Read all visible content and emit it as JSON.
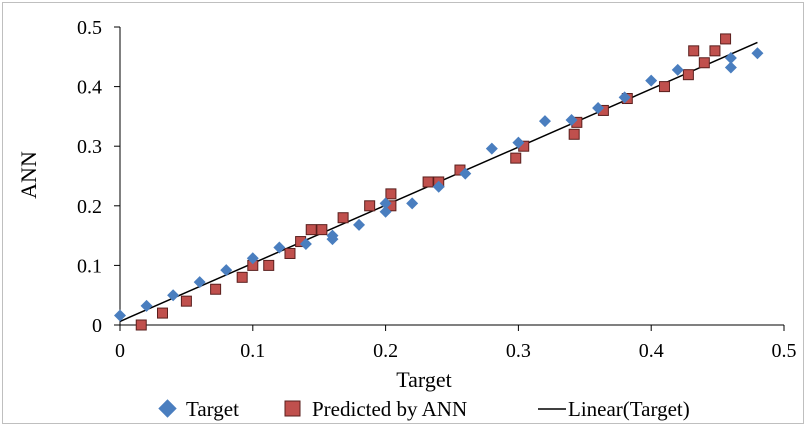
{
  "chart_data": {
    "type": "scatter",
    "title": "",
    "xlabel": "Target",
    "ylabel": "ANN",
    "xlim": [
      0,
      0.5
    ],
    "ylim": [
      0,
      0.5
    ],
    "x_ticks": [
      "0",
      "0.1",
      "0.2",
      "0.3",
      "0.4",
      "0.5"
    ],
    "y_ticks": [
      "0",
      "0.1",
      "0.2",
      "0.3",
      "0.4",
      "0.5"
    ],
    "grid": false,
    "legend_position": "bottom",
    "series": [
      {
        "name": "Target",
        "marker": "diamond",
        "color": "#4a7ebf",
        "points": [
          [
            0.0,
            0.016
          ],
          [
            0.02,
            0.032
          ],
          [
            0.04,
            0.05
          ],
          [
            0.06,
            0.072
          ],
          [
            0.08,
            0.092
          ],
          [
            0.1,
            0.112
          ],
          [
            0.12,
            0.13
          ],
          [
            0.14,
            0.136
          ],
          [
            0.16,
            0.144
          ],
          [
            0.16,
            0.15
          ],
          [
            0.18,
            0.168
          ],
          [
            0.2,
            0.19
          ],
          [
            0.2,
            0.204
          ],
          [
            0.22,
            0.204
          ],
          [
            0.24,
            0.232
          ],
          [
            0.26,
            0.254
          ],
          [
            0.28,
            0.296
          ],
          [
            0.3,
            0.306
          ],
          [
            0.32,
            0.342
          ],
          [
            0.34,
            0.344
          ],
          [
            0.36,
            0.364
          ],
          [
            0.38,
            0.382
          ],
          [
            0.4,
            0.41
          ],
          [
            0.42,
            0.428
          ],
          [
            0.46,
            0.432
          ],
          [
            0.46,
            0.448
          ],
          [
            0.48,
            0.456
          ]
        ]
      },
      {
        "name": "Predicted by ANN",
        "marker": "square",
        "color": "#c0504d",
        "points": [
          [
            0.016,
            0.0
          ],
          [
            0.032,
            0.02
          ],
          [
            0.05,
            0.04
          ],
          [
            0.072,
            0.06
          ],
          [
            0.092,
            0.08
          ],
          [
            0.1,
            0.1
          ],
          [
            0.112,
            0.1
          ],
          [
            0.128,
            0.12
          ],
          [
            0.136,
            0.14
          ],
          [
            0.144,
            0.16
          ],
          [
            0.152,
            0.16
          ],
          [
            0.168,
            0.18
          ],
          [
            0.188,
            0.2
          ],
          [
            0.204,
            0.2
          ],
          [
            0.204,
            0.22
          ],
          [
            0.232,
            0.24
          ],
          [
            0.24,
            0.24
          ],
          [
            0.256,
            0.26
          ],
          [
            0.298,
            0.28
          ],
          [
            0.304,
            0.3
          ],
          [
            0.342,
            0.32
          ],
          [
            0.344,
            0.34
          ],
          [
            0.364,
            0.36
          ],
          [
            0.382,
            0.38
          ],
          [
            0.41,
            0.4
          ],
          [
            0.428,
            0.42
          ],
          [
            0.432,
            0.46
          ],
          [
            0.44,
            0.44
          ],
          [
            0.448,
            0.46
          ],
          [
            0.456,
            0.48
          ]
        ]
      },
      {
        "name": "Linear(Target)",
        "type": "line",
        "color": "#000000",
        "points": [
          [
            0.0,
            0.006
          ],
          [
            0.48,
            0.474
          ]
        ]
      }
    ]
  }
}
